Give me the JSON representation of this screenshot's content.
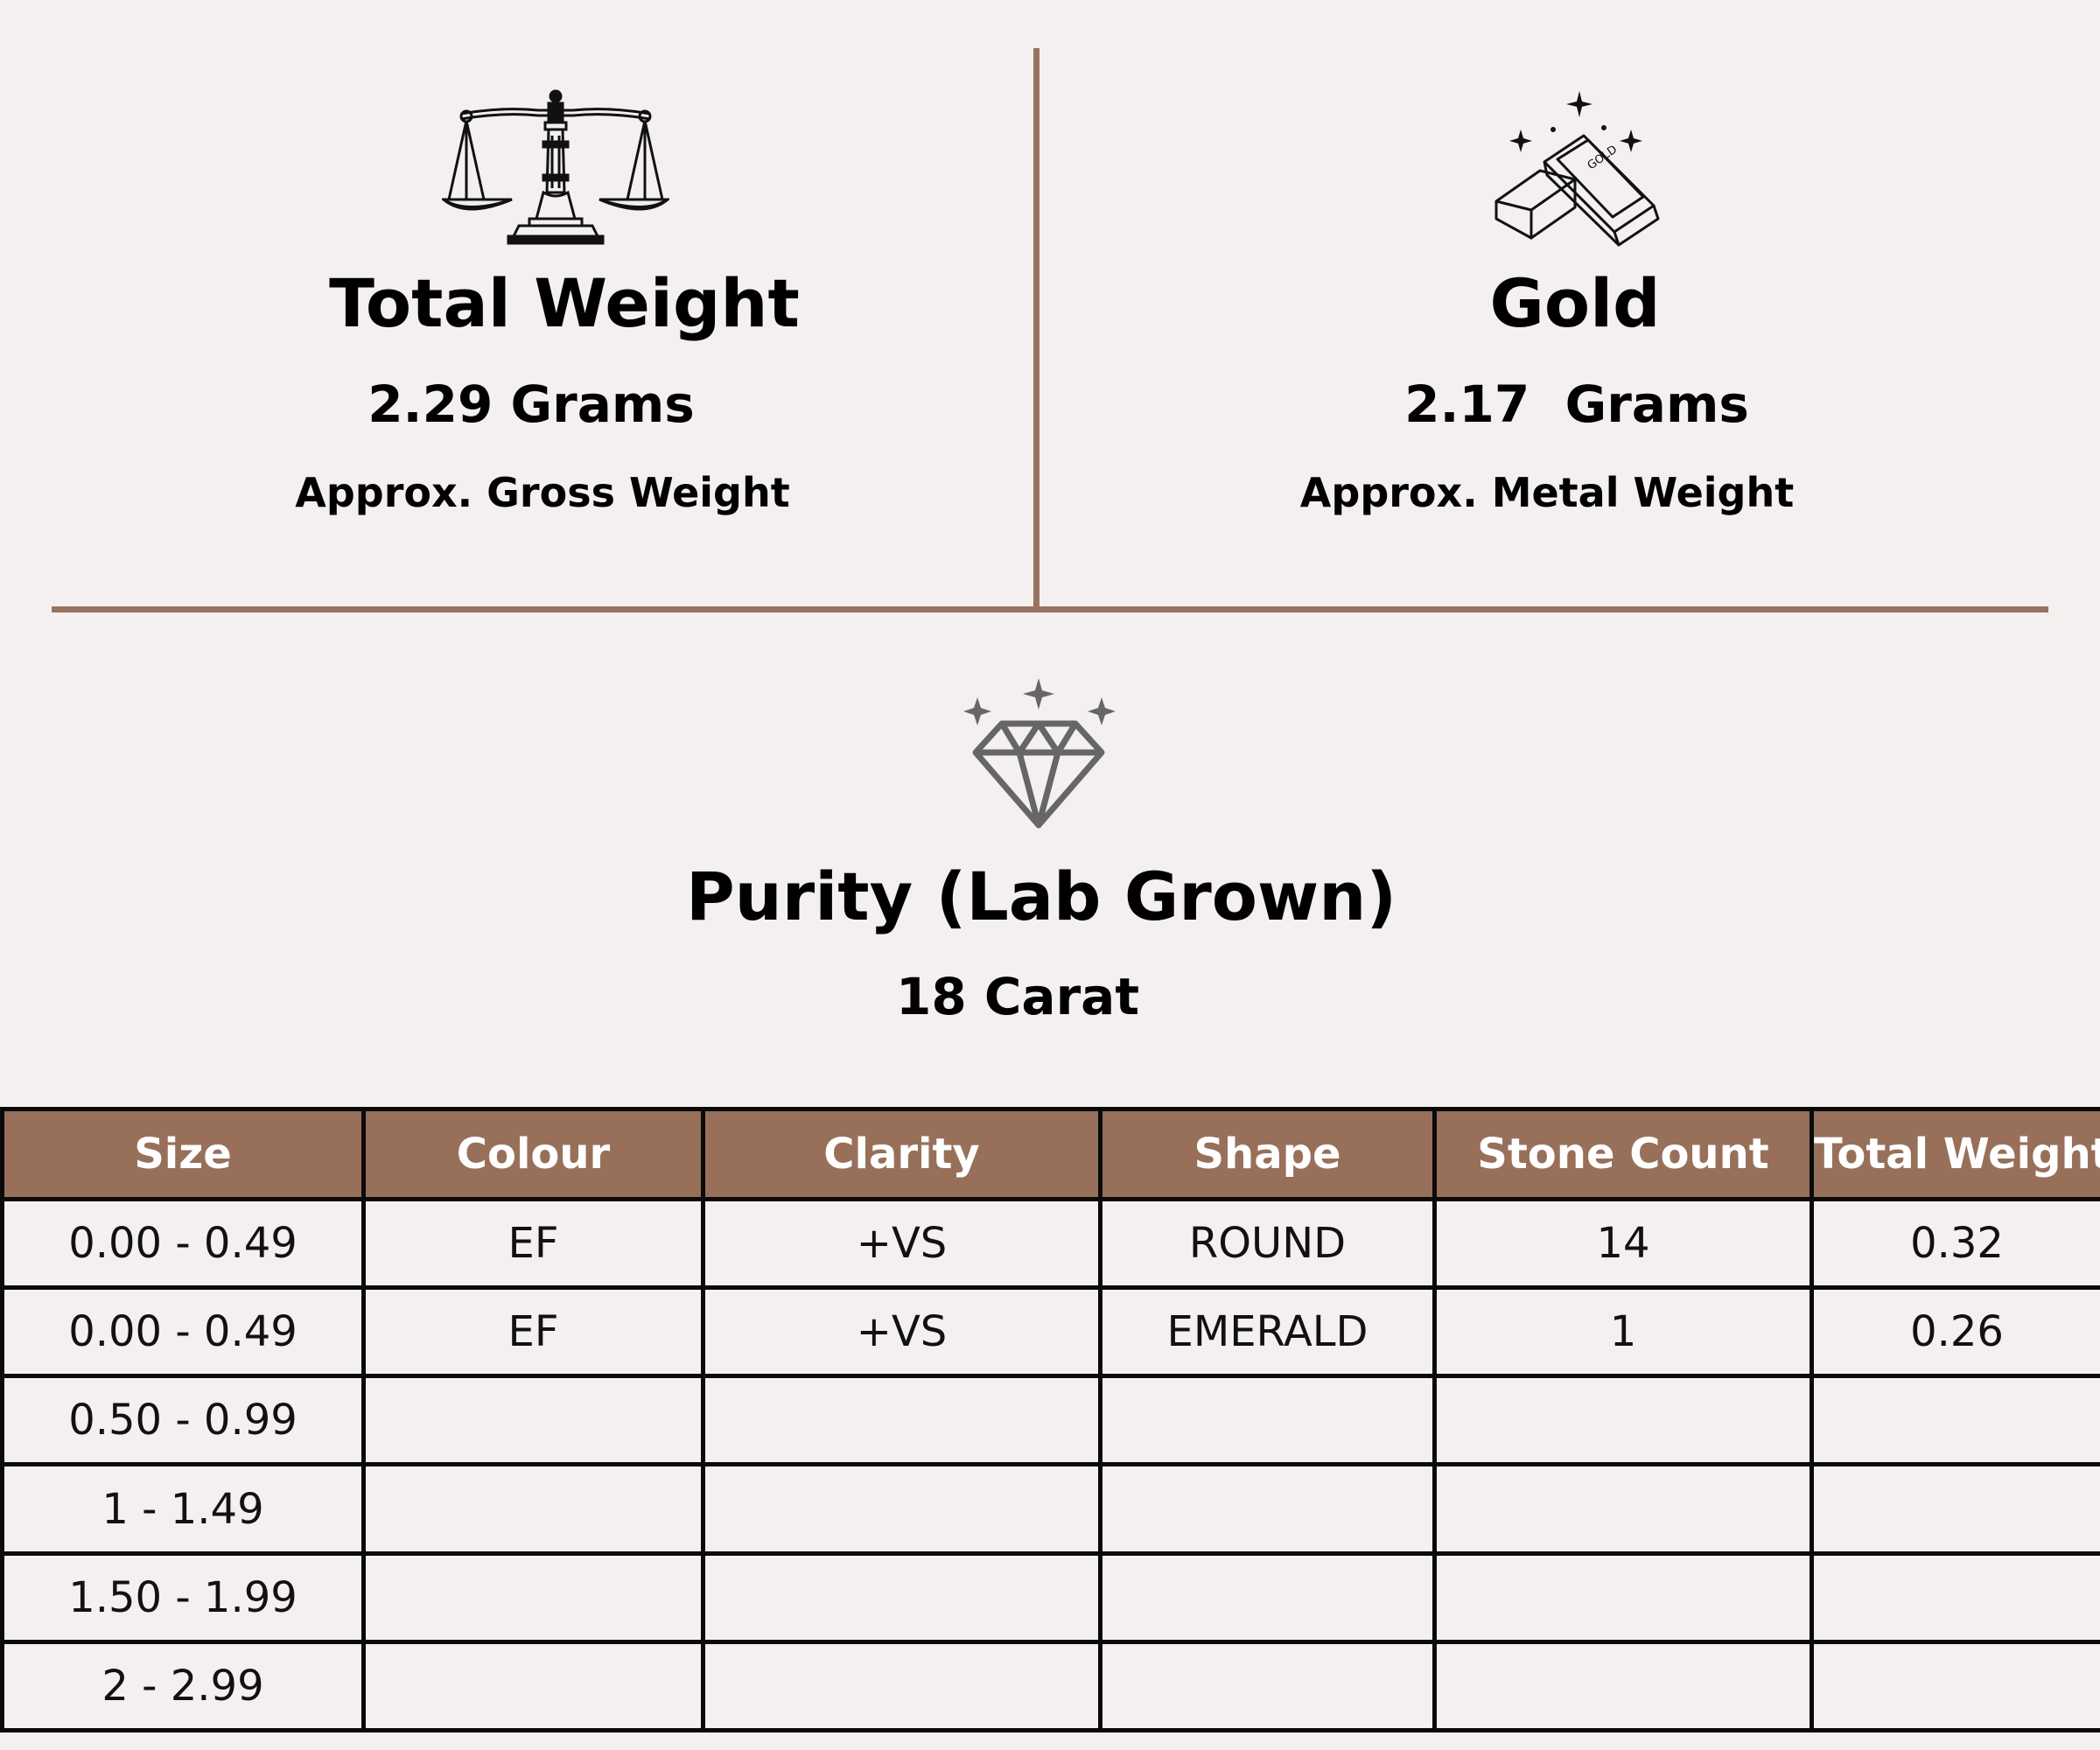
{
  "weight_panel": {
    "icon": "balance-scale-icon",
    "title": "Total Weight",
    "value": "2.29 Grams",
    "caption": "Approx. Gross Weight"
  },
  "gold_panel": {
    "icon": "gold-bars-icon",
    "icon_text": "GOLD",
    "title": "Gold",
    "value": "2.17  Grams",
    "caption": "Approx. Metal Weight"
  },
  "purity_panel": {
    "icon": "diamond-icon",
    "title": "Purity (Lab Grown)",
    "value": "18 Carat"
  },
  "colors": {
    "accent": "#98705a",
    "divider": "#9a7360",
    "background": "#f4f0ef"
  },
  "stone_table": {
    "headers": [
      "Size",
      "Colour",
      "Clarity",
      "Shape",
      "Stone Count",
      "Total Weight"
    ],
    "rows": [
      [
        "0.00 - 0.49",
        "EF",
        "+VS",
        "ROUND",
        "14",
        "0.32"
      ],
      [
        "0.00 - 0.49",
        "EF",
        "+VS",
        "EMERALD",
        "1",
        "0.26"
      ],
      [
        "0.50 - 0.99",
        "",
        "",
        "",
        "",
        ""
      ],
      [
        "1 - 1.49",
        "",
        "",
        "",
        "",
        ""
      ],
      [
        "1.50 - 1.99",
        "",
        "",
        "",
        "",
        ""
      ],
      [
        "2 - 2.99",
        "",
        "",
        "",
        "",
        ""
      ]
    ]
  }
}
